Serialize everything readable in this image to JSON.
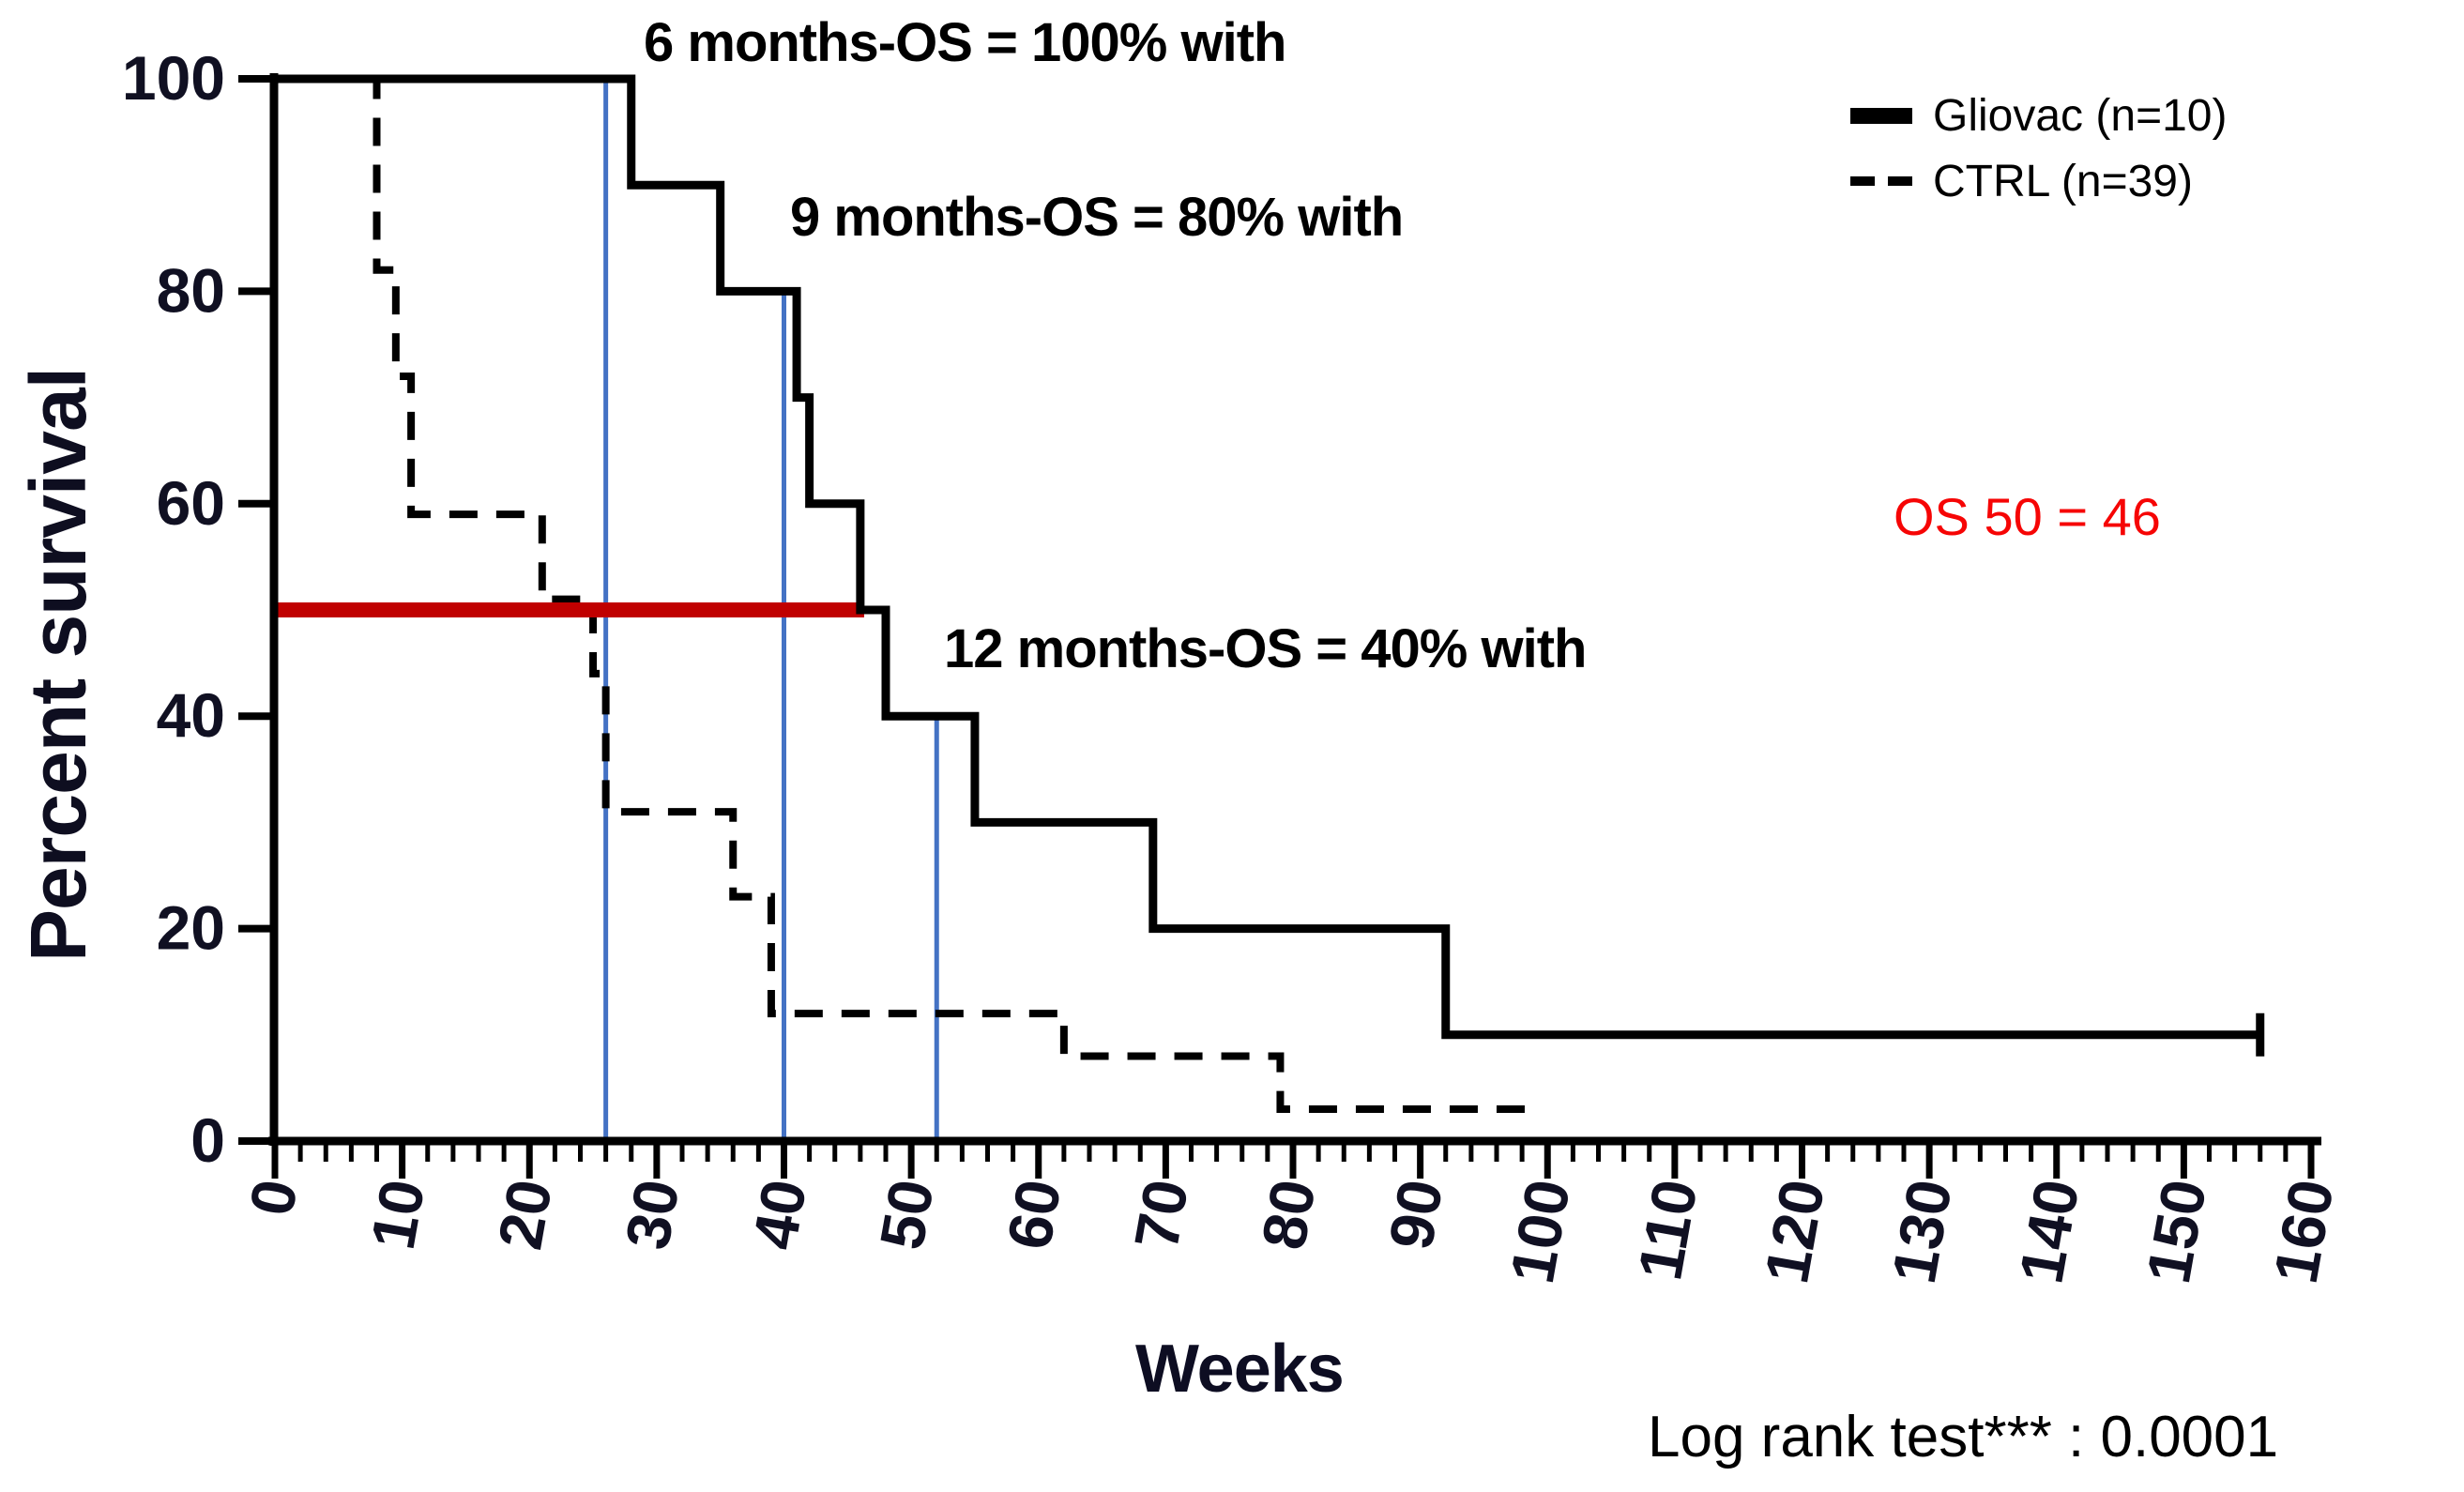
{
  "figure": {
    "annotations": {
      "os6": "6 months-OS = 100% with",
      "os9": "9 months-OS = 80% with",
      "os12": "12 months-OS = 40% with",
      "os50": "OS 50 = 46",
      "logrank": "Log rank test*** : 0.0001"
    },
    "legend": [
      {
        "label": "Gliovac (n=10)",
        "style": "solid"
      },
      {
        "label": "CTRL (n=39)",
        "style": "dashed"
      }
    ]
  },
  "chart_data": {
    "type": "line",
    "subtype": "kaplan-meier-step",
    "title": "",
    "xlabel": "Weeks",
    "ylabel": "Percent survival",
    "xlim": [
      0,
      160
    ],
    "ylim": [
      0,
      100
    ],
    "x_ticks": [
      0,
      10,
      20,
      30,
      40,
      50,
      60,
      70,
      80,
      90,
      100,
      110,
      120,
      130,
      140,
      150,
      160
    ],
    "x_minor_tick_step": 2,
    "y_ticks": [
      0,
      20,
      40,
      60,
      80,
      100
    ],
    "grid": false,
    "legend_position": "top-right",
    "series": [
      {
        "name": "Gliovac (n=10)",
        "line": "solid",
        "color": "#000000",
        "steps": [
          [
            0,
            100
          ],
          [
            28,
            90
          ],
          [
            35,
            80
          ],
          [
            41,
            70
          ],
          [
            42,
            60
          ],
          [
            46,
            50
          ],
          [
            48,
            40
          ],
          [
            55,
            30
          ],
          [
            69,
            20
          ],
          [
            92,
            10
          ]
        ],
        "end_x": 156,
        "end_censor_tick": true
      },
      {
        "name": "CTRL (n=39)",
        "line": "dashed",
        "color": "#000000",
        "steps": [
          [
            0,
            100
          ],
          [
            8,
            82
          ],
          [
            9.5,
            72
          ],
          [
            10.7,
            59
          ],
          [
            21,
            51
          ],
          [
            25,
            44
          ],
          [
            26,
            31
          ],
          [
            36,
            23
          ],
          [
            39,
            12
          ],
          [
            62,
            8
          ],
          [
            79,
            3
          ]
        ],
        "end_x": 99,
        "end_censor_tick": false
      }
    ],
    "reference_lines": {
      "median_horizontal": {
        "y": 50,
        "x_start": 0,
        "x_end": 46.3,
        "color": "#c00000"
      },
      "vertical_markers": [
        {
          "x": 26,
          "y_top": 100,
          "color": "#4472c4"
        },
        {
          "x": 40,
          "y_top": 80,
          "color": "#4472c4"
        },
        {
          "x": 52,
          "y_top": 40,
          "color": "#4472c4"
        }
      ]
    },
    "accent_colors": {
      "axis": "#000000",
      "tick_label": "#101022",
      "median_line": "#c00000",
      "milestone_line": "#4472c4",
      "os50_text": "#f60505"
    }
  }
}
